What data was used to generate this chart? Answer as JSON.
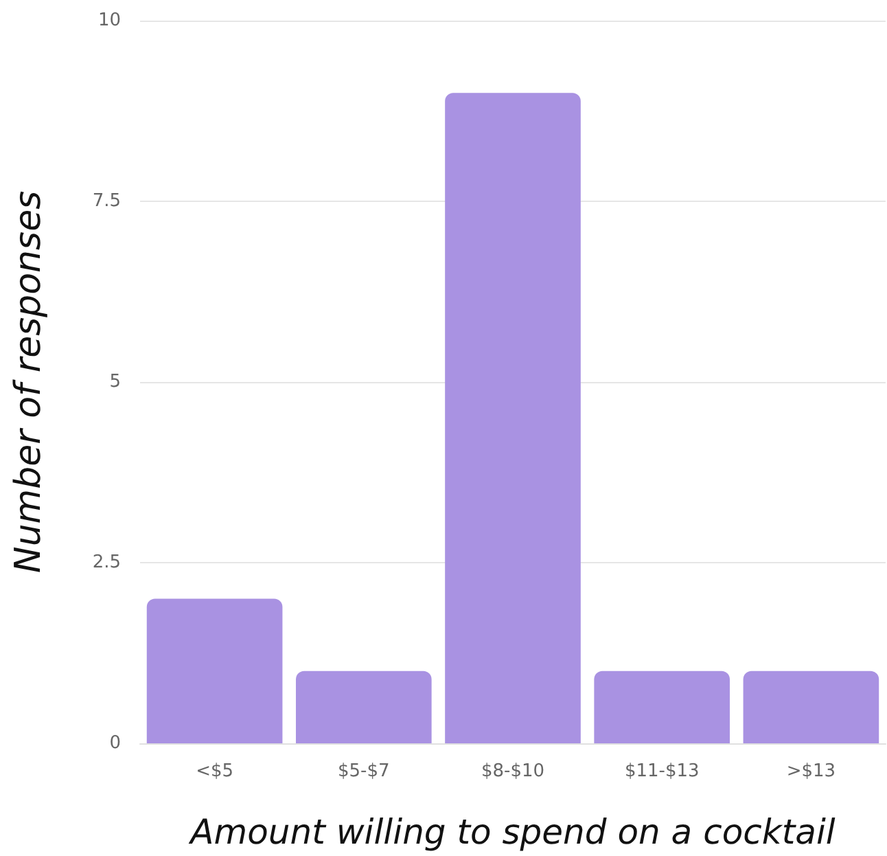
{
  "chart_data": {
    "type": "bar",
    "xlabel": "Amount willing to spend on a cocktail",
    "ylabel": "Number of responses",
    "categories": [
      "<$5",
      "$5-$7",
      "$8-$10",
      "$11-$13",
      ">$13"
    ],
    "values": [
      2,
      1,
      9,
      1,
      1
    ],
    "color": "#a992e2",
    "ylim": [
      0,
      10
    ],
    "yticks": [
      0,
      2.5,
      5,
      7.5,
      10
    ],
    "grid": "y"
  }
}
